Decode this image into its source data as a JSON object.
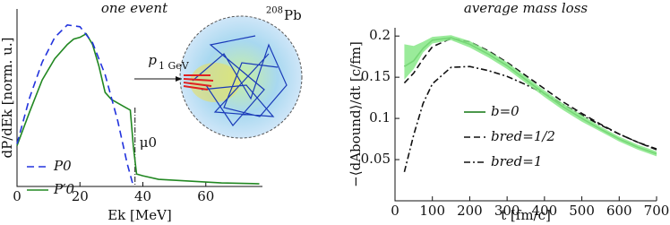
{
  "chart_data": [
    {
      "type": "line",
      "title": "one event",
      "x_label": "Ek [MeV]",
      "y_label": "dP/dEk [norm. u.]",
      "xlim": [
        0,
        78
      ],
      "xticks": [
        0,
        20,
        40,
        60
      ],
      "ylim": [
        0,
        1
      ],
      "series": [
        {
          "name": "P0",
          "color": "#2233dd",
          "dash": "8,5",
          "x": [
            0,
            4,
            8,
            12,
            16,
            20,
            24,
            28,
            32,
            35,
            37
          ],
          "values": [
            0.24,
            0.5,
            0.7,
            0.84,
            0.91,
            0.9,
            0.81,
            0.63,
            0.37,
            0.13,
            0.0
          ]
        },
        {
          "name": "P′0",
          "color": "#228822",
          "dash": "",
          "x": [
            0,
            4,
            8,
            12,
            16,
            18,
            20,
            22,
            24,
            26,
            28,
            30,
            32,
            34,
            36,
            37,
            38,
            40,
            45,
            50,
            55,
            60,
            65,
            70,
            75,
            77
          ],
          "values": [
            0.23,
            0.42,
            0.6,
            0.72,
            0.8,
            0.83,
            0.84,
            0.86,
            0.8,
            0.68,
            0.53,
            0.49,
            0.47,
            0.45,
            0.43,
            0.22,
            0.07,
            0.06,
            0.04,
            0.035,
            0.03,
            0.025,
            0.02,
            0.018,
            0.016,
            0.015
          ]
        }
      ],
      "vline": {
        "x": 37.5,
        "label": "μ0"
      },
      "inset": {
        "mass_number": "208",
        "element": "Pb",
        "projectile": "p",
        "energy": "1 GeV"
      }
    },
    {
      "type": "line",
      "title": "average mass loss",
      "x_label": "t [fm/c]",
      "y_label": "−⟨dAbound⟩/dt [c/fm]",
      "xlim": [
        0,
        700
      ],
      "xticks": [
        0,
        100,
        200,
        300,
        400,
        500,
        600,
        700
      ],
      "ylim": [
        0,
        0.21
      ],
      "yticks": [
        0.05,
        0.1,
        0.15,
        0.2
      ],
      "x": [
        25,
        50,
        75,
        100,
        150,
        200,
        250,
        300,
        350,
        400,
        450,
        500,
        550,
        600,
        650,
        700
      ],
      "series": [
        {
          "name": "b=0",
          "color": "#117711",
          "dash": "",
          "values": [
            0.163,
            0.17,
            0.185,
            0.195,
            0.198,
            0.19,
            0.178,
            0.164,
            0.147,
            0.13,
            0.114,
            0.1,
            0.087,
            0.075,
            0.065,
            0.057
          ],
          "band": {
            "color": "#88e888",
            "lower": [
              0.147,
              0.16,
              0.18,
              0.191,
              0.195,
              0.186,
              0.174,
              0.16,
              0.143,
              0.126,
              0.11,
              0.096,
              0.084,
              0.072,
              0.062,
              0.054
            ],
            "upper": [
              0.19,
              0.188,
              0.193,
              0.199,
              0.201,
              0.194,
              0.182,
              0.168,
              0.151,
              0.134,
              0.118,
              0.104,
              0.09,
              0.078,
              0.068,
              0.06
            ]
          }
        },
        {
          "name": "bred=1/2",
          "color": "#111111",
          "dash": "7,4",
          "values": [
            0.143,
            0.155,
            0.172,
            0.187,
            0.197,
            0.193,
            0.182,
            0.168,
            0.152,
            0.136,
            0.12,
            0.106,
            0.093,
            0.081,
            0.071,
            0.062
          ]
        },
        {
          "name": "bred=1",
          "color": "#111111",
          "dash": "7,3,2,3",
          "values": [
            0.035,
            0.08,
            0.118,
            0.142,
            0.162,
            0.163,
            0.158,
            0.151,
            0.141,
            0.13,
            0.117,
            0.104,
            0.092,
            0.081,
            0.071,
            0.063
          ]
        }
      ]
    }
  ]
}
